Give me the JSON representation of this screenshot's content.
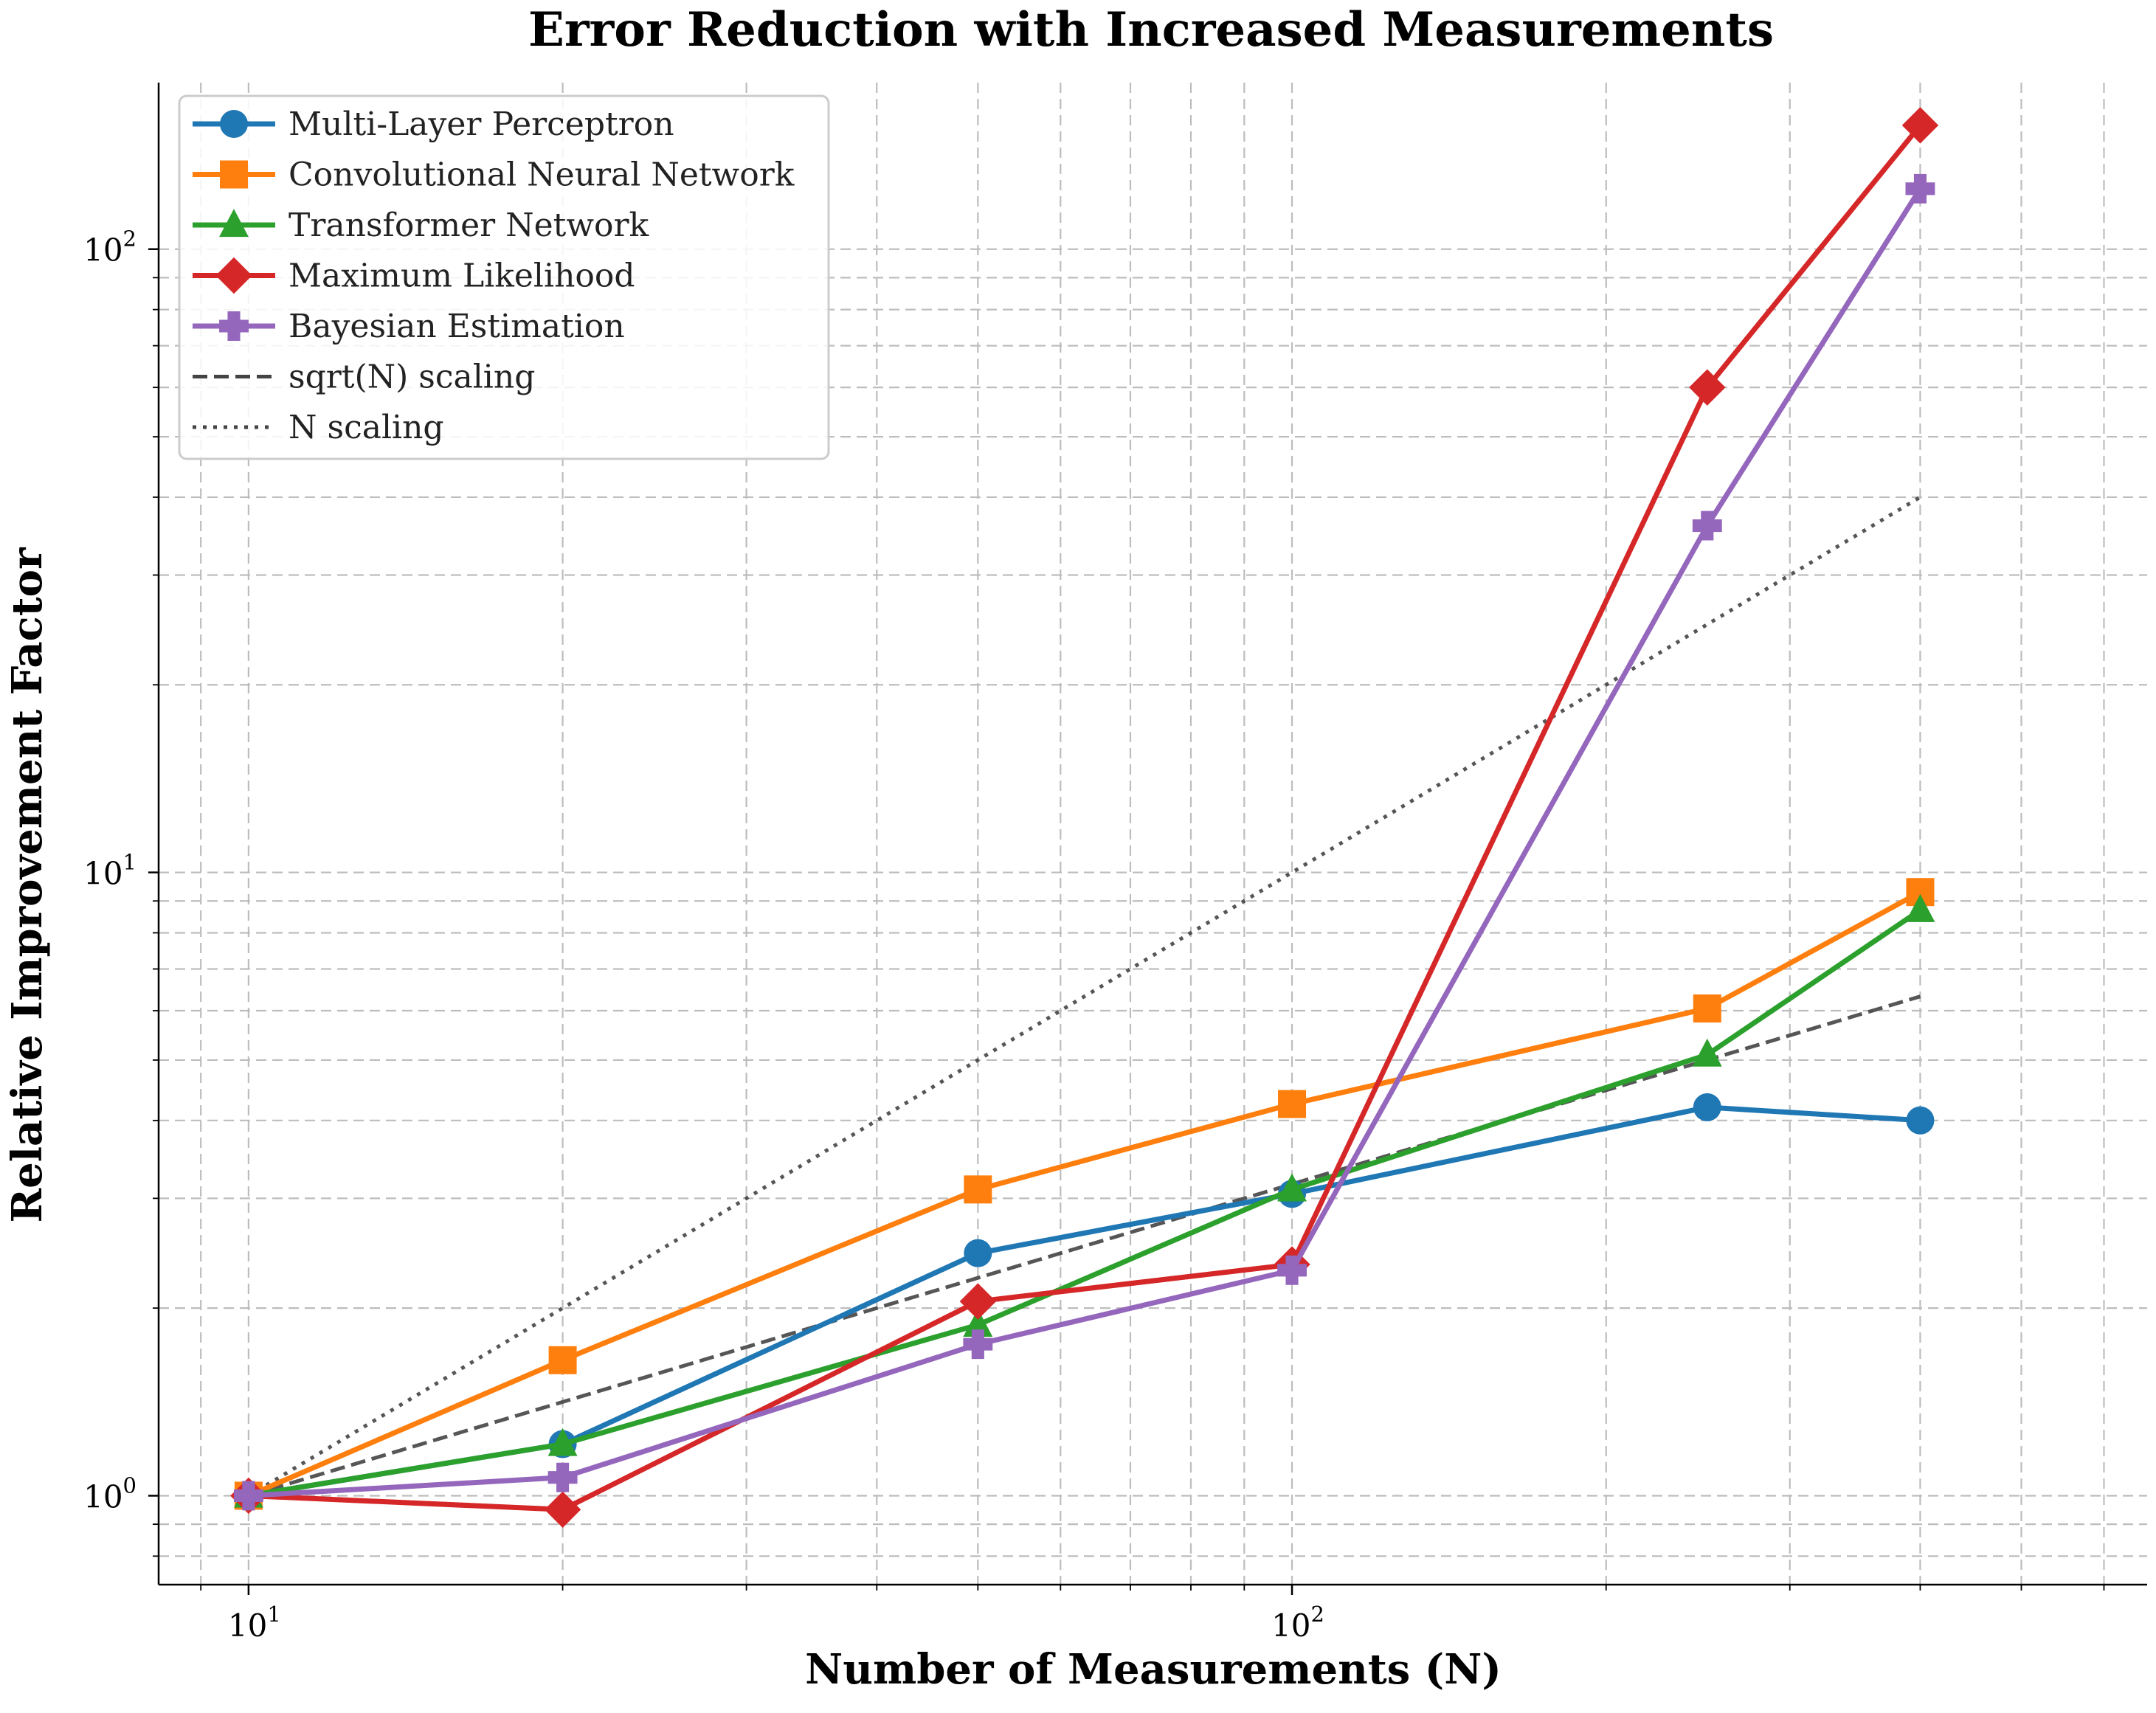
{
  "chart_data": {
    "type": "line",
    "title": "Error Reduction with Increased Measurements",
    "xlabel": "Number of Measurements (N)",
    "ylabel": "Relative Improvement Factor",
    "xscale": "log",
    "yscale": "log",
    "xlim": [
      8.2,
      660
    ],
    "ylim": [
      0.72,
      185
    ],
    "x": [
      10,
      20,
      50,
      100,
      250,
      400
    ],
    "x_tick_labels": [
      {
        "value": 10,
        "base": "10",
        "exp": "1"
      },
      {
        "value": 100,
        "base": "10",
        "exp": "2"
      }
    ],
    "y_tick_labels": [
      {
        "value": 1,
        "base": "10",
        "exp": "0"
      },
      {
        "value": 10,
        "base": "10",
        "exp": "1"
      },
      {
        "value": 100,
        "base": "10",
        "exp": "2"
      }
    ],
    "grid": true,
    "legend_position": "top-left",
    "series": [
      {
        "name": "Multi-Layer Perceptron",
        "color": "#1f77b4",
        "marker": "circle",
        "values": [
          1.0,
          1.21,
          2.45,
          3.05,
          4.2,
          4.0
        ]
      },
      {
        "name": "Convolutional Neural Network",
        "color": "#ff7f0e",
        "marker": "square",
        "values": [
          1.0,
          1.65,
          3.1,
          4.25,
          6.05,
          9.3
        ]
      },
      {
        "name": "Transformer Network",
        "color": "#2ca02c",
        "marker": "triangle",
        "values": [
          1.0,
          1.21,
          1.88,
          3.1,
          5.1,
          8.7
        ]
      },
      {
        "name": "Maximum Likelihood",
        "color": "#d62728",
        "marker": "diamond",
        "values": [
          1.0,
          0.95,
          2.05,
          2.35,
          60.0,
          158.0
        ]
      },
      {
        "name": "Bayesian Estimation",
        "color": "#9467bd",
        "marker": "plus",
        "values": [
          1.0,
          1.07,
          1.75,
          2.3,
          36.0,
          125.0
        ]
      },
      {
        "name": "sqrt(N) scaling",
        "color": "#444444",
        "dash": "dashed",
        "values": [
          1.0,
          1.414,
          2.236,
          3.162,
          5.0,
          6.325
        ]
      },
      {
        "name": "N scaling",
        "color": "#444444",
        "dash": "dotted",
        "values": [
          1.0,
          2.0,
          5.0,
          10.0,
          25.0,
          40.0
        ]
      }
    ]
  }
}
